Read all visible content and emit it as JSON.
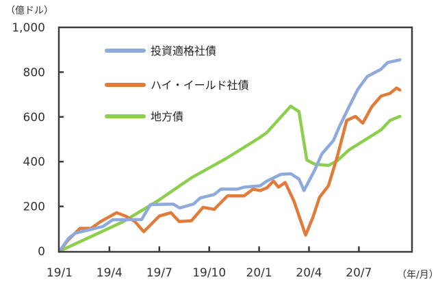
{
  "chart_data": {
    "type": "line",
    "title": "",
    "ylabel": "（億ドル）",
    "xlabel": "（年/月）",
    "ylim": [
      0,
      1000
    ],
    "xlim": [
      "2019-01-01",
      "2020-10-01"
    ],
    "yticks": [
      "0",
      "200",
      "400",
      "600",
      "800",
      "1,000"
    ],
    "ytick_values": [
      0,
      200,
      400,
      600,
      800,
      1000
    ],
    "xticks": [
      "19/1",
      "19/4",
      "19/7",
      "19/10",
      "20/1",
      "20/4",
      "20/7"
    ],
    "xtick_values": [
      "2019-01-01",
      "2019-04-01",
      "2019-07-01",
      "2019-10-01",
      "2020-01-01",
      "2020-04-01",
      "2020-07-01"
    ],
    "grid": false,
    "legend_position": "top-left",
    "series": [
      {
        "name": "投資適格社債",
        "color": "#8EA9DB",
        "points": [
          [
            "2019-01-01",
            0
          ],
          [
            "2019-01-17",
            57
          ],
          [
            "2019-01-29",
            80
          ],
          [
            "2019-02-24",
            95
          ],
          [
            "2019-03-19",
            110
          ],
          [
            "2019-04-07",
            140
          ],
          [
            "2019-04-26",
            141
          ],
          [
            "2019-05-29",
            141
          ],
          [
            "2019-06-15",
            208
          ],
          [
            "2019-07-26",
            210
          ],
          [
            "2019-08-08",
            193
          ],
          [
            "2019-09-03",
            211
          ],
          [
            "2019-09-15",
            238
          ],
          [
            "2019-10-10",
            253
          ],
          [
            "2019-10-22",
            277
          ],
          [
            "2019-11-22",
            277
          ],
          [
            "2019-12-04",
            286
          ],
          [
            "2020-01-03",
            292
          ],
          [
            "2020-01-15",
            313
          ],
          [
            "2020-02-10",
            343
          ],
          [
            "2020-02-28",
            346
          ],
          [
            "2020-03-13",
            322
          ],
          [
            "2020-03-22",
            271
          ],
          [
            "2020-04-11",
            361
          ],
          [
            "2020-04-24",
            434
          ],
          [
            "2020-05-15",
            494
          ],
          [
            "2020-05-27",
            563
          ],
          [
            "2020-06-13",
            644
          ],
          [
            "2020-06-29",
            723
          ],
          [
            "2020-07-16",
            780
          ],
          [
            "2020-08-11",
            813
          ],
          [
            "2020-08-23",
            843
          ],
          [
            "2020-09-15",
            855
          ]
        ]
      },
      {
        "name": "ハイ・イールド社債",
        "color": "#E07B39",
        "points": [
          [
            "2019-01-01",
            0
          ],
          [
            "2019-01-17",
            51
          ],
          [
            "2019-02-08",
            102
          ],
          [
            "2019-02-28",
            102
          ],
          [
            "2019-03-15",
            132
          ],
          [
            "2019-04-14",
            172
          ],
          [
            "2019-04-30",
            157
          ],
          [
            "2019-05-17",
            132
          ],
          [
            "2019-06-03",
            87
          ],
          [
            "2019-07-01",
            157
          ],
          [
            "2019-07-22",
            172
          ],
          [
            "2019-08-07",
            132
          ],
          [
            "2019-08-29",
            136
          ],
          [
            "2019-09-20",
            196
          ],
          [
            "2019-10-10",
            187
          ],
          [
            "2019-11-04",
            247
          ],
          [
            "2019-12-04",
            247
          ],
          [
            "2019-12-20",
            277
          ],
          [
            "2020-01-03",
            271
          ],
          [
            "2020-01-15",
            283
          ],
          [
            "2020-01-27",
            313
          ],
          [
            "2020-02-06",
            286
          ],
          [
            "2020-02-18",
            307
          ],
          [
            "2020-03-04",
            223
          ],
          [
            "2020-03-25",
            72
          ],
          [
            "2020-04-08",
            151
          ],
          [
            "2020-04-20",
            241
          ],
          [
            "2020-05-06",
            292
          ],
          [
            "2020-05-22",
            422
          ],
          [
            "2020-06-09",
            584
          ],
          [
            "2020-06-25",
            602
          ],
          [
            "2020-07-08",
            572
          ],
          [
            "2020-07-24",
            644
          ],
          [
            "2020-08-11",
            693
          ],
          [
            "2020-08-27",
            705
          ],
          [
            "2020-09-09",
            729
          ],
          [
            "2020-09-15",
            720
          ]
        ]
      },
      {
        "name": "地方債",
        "color": "#8CCF4D",
        "points": [
          [
            "2019-01-01",
            0
          ],
          [
            "2019-04-26",
            132
          ],
          [
            "2019-06-27",
            223
          ],
          [
            "2019-08-29",
            328
          ],
          [
            "2019-11-01",
            413
          ],
          [
            "2020-01-03",
            509
          ],
          [
            "2020-01-15",
            530
          ],
          [
            "2020-02-28",
            648
          ],
          [
            "2020-03-13",
            623
          ],
          [
            "2020-03-27",
            407
          ],
          [
            "2020-04-11",
            389
          ],
          [
            "2020-05-06",
            383
          ],
          [
            "2020-05-22",
            404
          ],
          [
            "2020-06-13",
            452
          ],
          [
            "2020-07-16",
            503
          ],
          [
            "2020-08-11",
            542
          ],
          [
            "2020-08-27",
            584
          ],
          [
            "2020-09-15",
            602
          ]
        ]
      }
    ]
  }
}
